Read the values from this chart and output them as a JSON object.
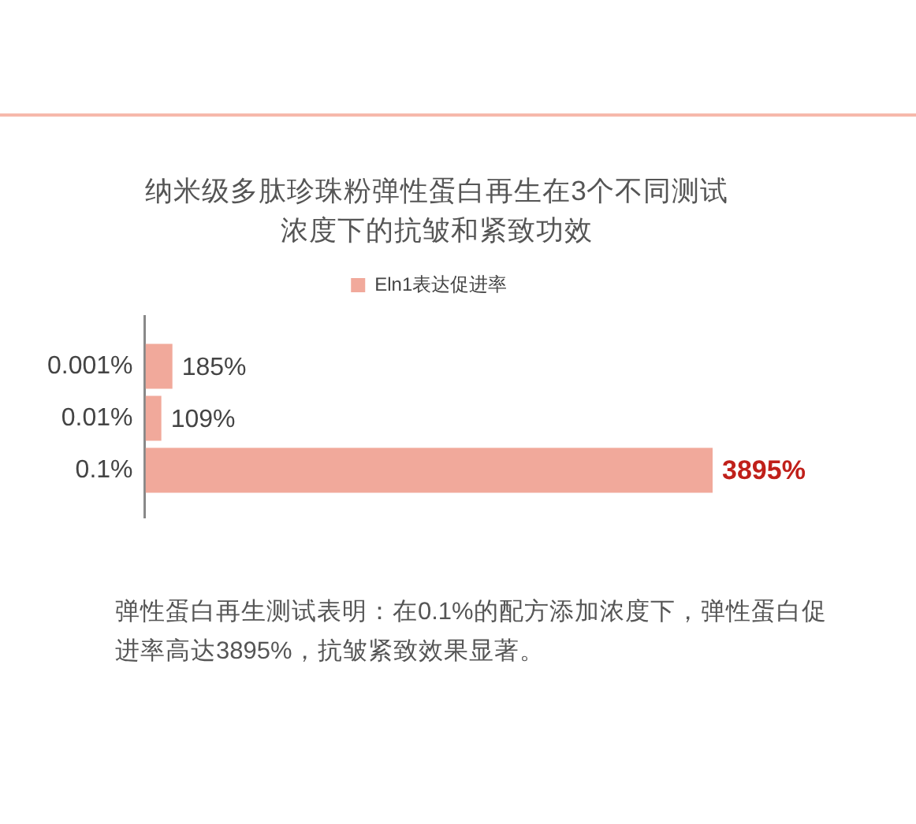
{
  "chart_data": {
    "type": "bar",
    "orientation": "horizontal",
    "title": "纳米级多肽珍珠粉弹性蛋白再生在3个不同测试浓度下的抗皱和紧致功效",
    "categories": [
      "0.001%",
      "0.01%",
      "0.1%"
    ],
    "series": [
      {
        "name": "Eln1表达促进率",
        "color": "#f1a99b",
        "values": [
          185,
          109,
          3895
        ],
        "value_labels": [
          "185%",
          "109%",
          "3895%"
        ]
      }
    ],
    "legend": "top",
    "annotations": [
      "弹性蛋白再生测试表明：在0.1%的配方添加浓度下，弹性蛋白促进率高达3895%，抗皱紧致效果显著。"
    ]
  }
}
